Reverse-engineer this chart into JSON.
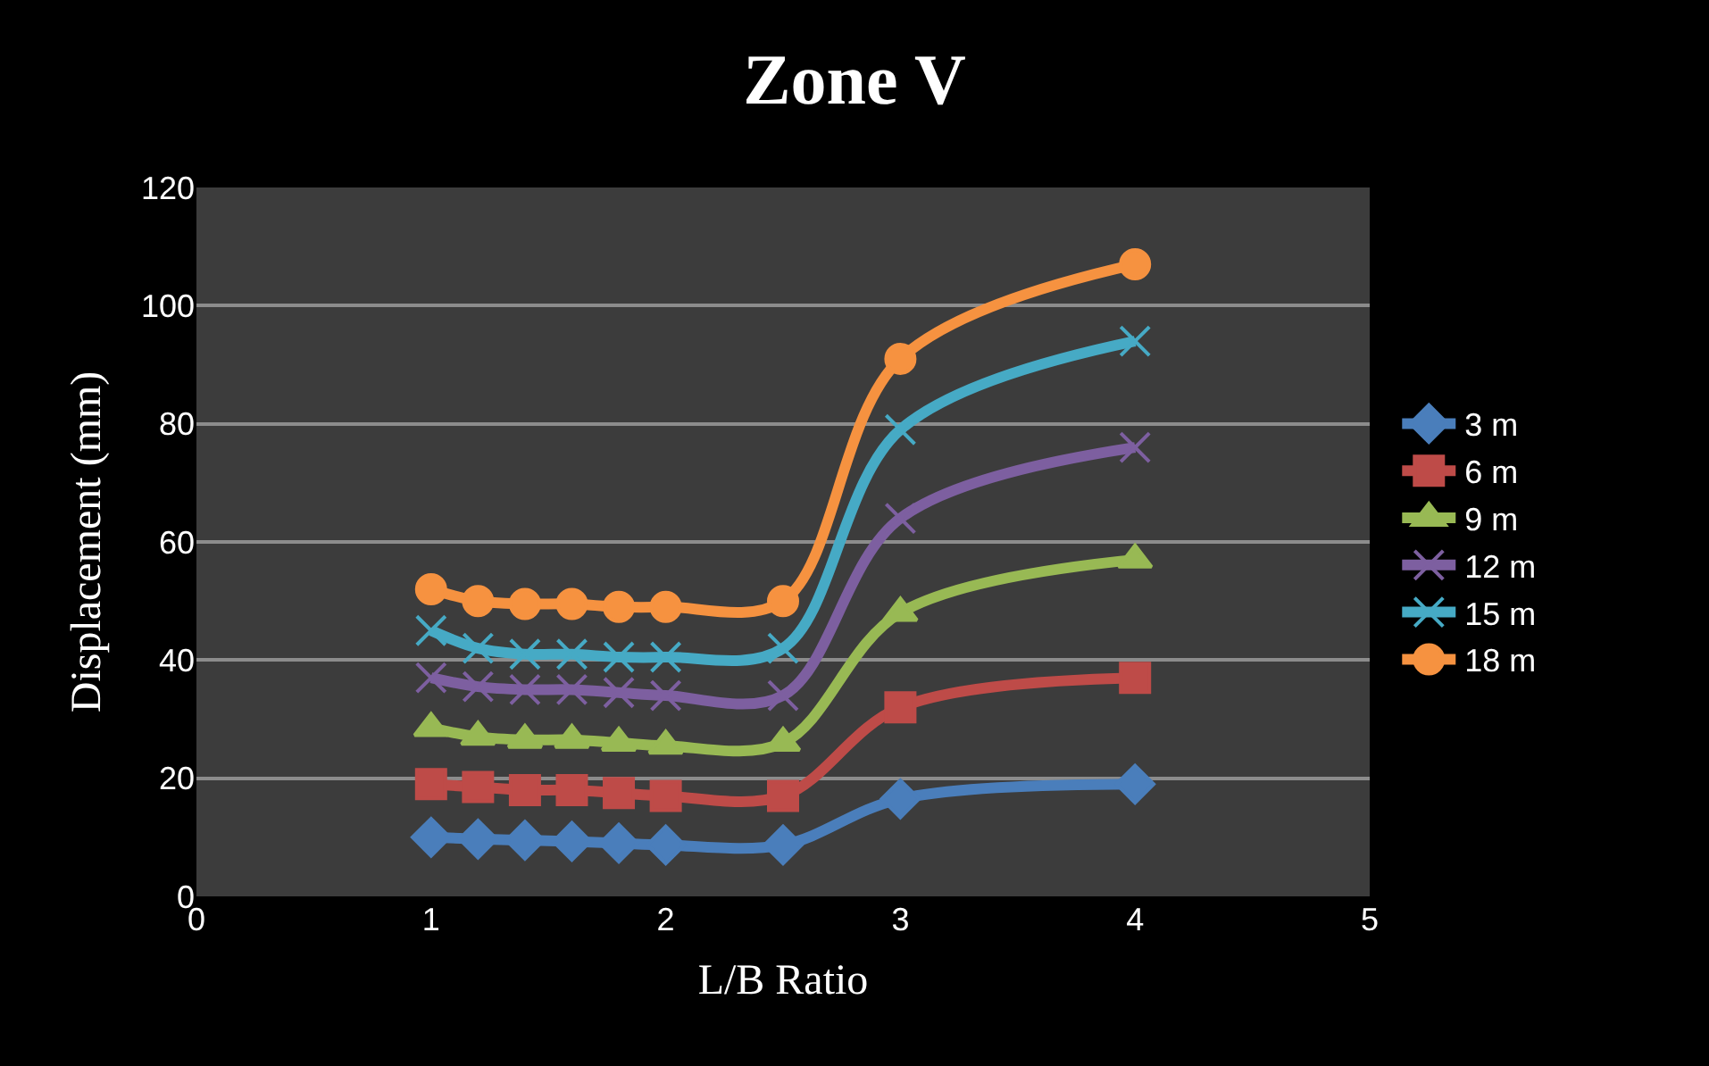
{
  "chart_data": {
    "type": "line",
    "title": "Zone V",
    "xlabel": "L/B Ratio",
    "ylabel": "Displacement (mm)",
    "x": [
      1,
      1.2,
      1.4,
      1.6,
      1.8,
      2,
      2.5,
      3,
      4
    ],
    "xlim": [
      0,
      5
    ],
    "xticks": [
      0,
      1,
      2,
      3,
      4,
      5
    ],
    "ylim": [
      0,
      120
    ],
    "yticks": [
      0,
      20,
      40,
      60,
      80,
      100,
      120
    ],
    "grid": "y",
    "legend": "right",
    "series": [
      {
        "name": "3 m",
        "color": "#4a7ebb",
        "marker": "diamond",
        "values": [
          10,
          9.7,
          9.5,
          9.3,
          9,
          8.7,
          8.7,
          16.5,
          19
        ]
      },
      {
        "name": "6 m",
        "color": "#be4b48",
        "marker": "square",
        "values": [
          19,
          18.5,
          18,
          18,
          17.5,
          17,
          17,
          32,
          37
        ]
      },
      {
        "name": "9 m",
        "color": "#98b954",
        "marker": "triangle",
        "values": [
          28.5,
          27,
          26.5,
          26.5,
          26,
          25.5,
          26,
          48,
          57
        ]
      },
      {
        "name": "12 m",
        "color": "#7d5fa0",
        "marker": "cross",
        "values": [
          37,
          35.5,
          35,
          35,
          34.5,
          34,
          34,
          64,
          76
        ]
      },
      {
        "name": "15 m",
        "color": "#46aac5",
        "marker": "cross",
        "values": [
          45,
          42,
          41,
          41,
          40.5,
          40.5,
          42,
          79,
          94
        ]
      },
      {
        "name": "18 m",
        "color": "#f69240",
        "marker": "circle",
        "values": [
          52,
          50,
          49.5,
          49.5,
          49,
          49,
          50,
          91,
          107
        ]
      }
    ]
  }
}
